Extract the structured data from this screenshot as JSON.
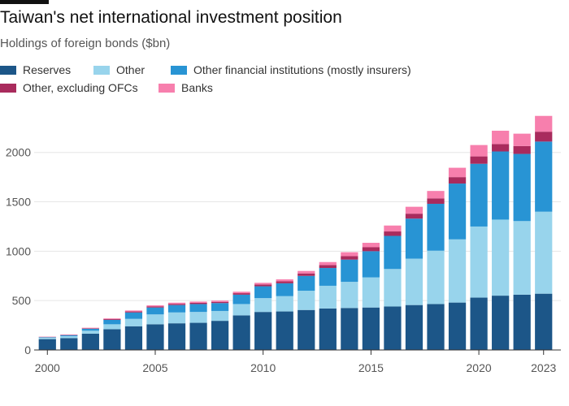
{
  "title": "Taiwan's net international investment position",
  "subtitle": "Holdings of foreign bonds ($bn)",
  "colors": {
    "reserves": "#1c5688",
    "other": "#98d4ec",
    "ofi": "#2894d4",
    "other_ex_ofc": "#a92b5d",
    "banks": "#f77fad",
    "grid": "#e6e6e6",
    "axis": "#333333"
  },
  "chart_data": {
    "type": "bar",
    "stacked": true,
    "title": "Taiwan's net international investment position",
    "subtitle": "Holdings of foreign bonds ($bn)",
    "x": [
      2000,
      2001,
      2002,
      2003,
      2004,
      2005,
      2006,
      2007,
      2008,
      2009,
      2010,
      2011,
      2012,
      2013,
      2014,
      2015,
      2016,
      2017,
      2018,
      2019,
      2020,
      2021,
      2022,
      2023
    ],
    "x_ticks": [
      "2000",
      "2005",
      "2010",
      "2015",
      "2020",
      "2023"
    ],
    "y_ticks": [
      "0",
      "500",
      "1000",
      "1500",
      "2000"
    ],
    "ylim": [
      0,
      2450
    ],
    "grid": true,
    "legend_position": "top-left",
    "series": [
      {
        "name": "Reserves",
        "color_key": "reserves",
        "values": [
          110,
          120,
          165,
          210,
          240,
          260,
          270,
          275,
          295,
          350,
          385,
          390,
          405,
          420,
          425,
          430,
          440,
          455,
          465,
          480,
          530,
          550,
          560,
          570
        ]
      },
      {
        "name": "Other",
        "color_key": "other",
        "values": [
          15,
          20,
          30,
          50,
          75,
          100,
          110,
          110,
          100,
          115,
          140,
          155,
          195,
          230,
          265,
          305,
          380,
          470,
          540,
          640,
          720,
          770,
          745,
          830
        ]
      },
      {
        "name": "Other financial institutions (mostly insurers)",
        "color_key": "ofi",
        "values": [
          5,
          10,
          20,
          45,
          65,
          70,
          75,
          80,
          80,
          95,
          120,
          130,
          150,
          180,
          225,
          265,
          335,
          405,
          475,
          565,
          635,
          690,
          680,
          710
        ]
      },
      {
        "name": "Other, excluding OFCs",
        "color_key": "other_ex_ofc",
        "values": [
          2,
          3,
          5,
          8,
          10,
          10,
          12,
          12,
          12,
          15,
          18,
          20,
          25,
          30,
          35,
          40,
          45,
          50,
          55,
          65,
          75,
          75,
          80,
          100
        ]
      },
      {
        "name": "Banks",
        "color_key": "banks",
        "values": [
          3,
          4,
          5,
          7,
          10,
          12,
          12,
          13,
          13,
          15,
          17,
          20,
          25,
          30,
          40,
          45,
          60,
          70,
          75,
          95,
          115,
          135,
          125,
          160
        ]
      }
    ]
  }
}
